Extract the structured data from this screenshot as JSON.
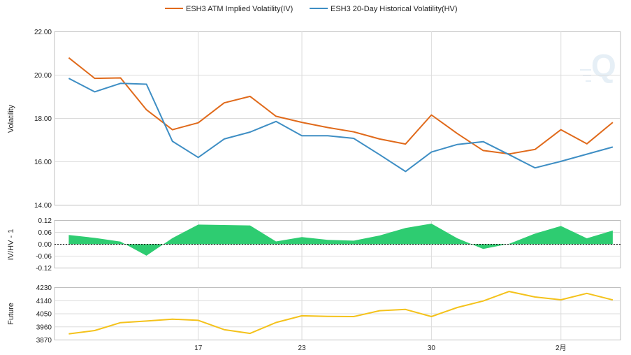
{
  "chart_data": [
    {
      "type": "line",
      "legend": {
        "placement": "top-center"
      },
      "ylabel": "Volatility",
      "ylim": [
        14,
        22
      ],
      "yticks": [
        "22.00",
        "20.00",
        "18.00",
        "16.00",
        "14.00"
      ],
      "x": [
        1,
        2,
        3,
        4,
        5,
        6,
        7,
        8,
        9,
        10,
        11,
        12,
        13,
        14,
        15,
        16,
        17,
        18,
        19,
        20,
        21,
        22
      ],
      "xlim": [
        0.45,
        22.3
      ],
      "xticks": [
        {
          "label": "17",
          "x": 6
        },
        {
          "label": "23",
          "x": 10
        },
        {
          "label": "30",
          "x": 15
        },
        {
          "label": "2月",
          "x": 20
        }
      ],
      "grid": true,
      "series": [
        {
          "name": "ESH3 ATM Implied Volatility(IV)",
          "color": "#e06a1b",
          "values": [
            20.8,
            19.85,
            19.87,
            18.4,
            17.48,
            17.8,
            18.72,
            19.02,
            18.1,
            17.82,
            17.58,
            17.38,
            17.05,
            16.82,
            18.16,
            17.3,
            16.52,
            16.36,
            16.57,
            17.48,
            16.83,
            17.82
          ]
        },
        {
          "name": "ESH3 20-Day Historical Volatility(HV)",
          "color": "#3e8ec4",
          "values": [
            19.85,
            19.23,
            19.62,
            19.58,
            16.95,
            16.2,
            17.05,
            17.37,
            17.86,
            17.2,
            17.2,
            17.08,
            16.33,
            15.55,
            16.45,
            16.8,
            16.93,
            16.33,
            15.72,
            16.02,
            16.35,
            16.68
          ]
        }
      ]
    },
    {
      "type": "area",
      "ylabel": "IV/HV - 1",
      "ylim": [
        -0.12,
        0.12
      ],
      "yticks": [
        "0.12",
        "0.06",
        "0.00",
        "-0.06",
        "-0.12"
      ],
      "baseline": 0,
      "grid": true,
      "series": [
        {
          "color": "#2ecc71",
          "values": [
            0.047,
            0.032,
            0.013,
            -0.058,
            0.031,
            0.099,
            0.097,
            0.095,
            0.014,
            0.036,
            0.022,
            0.018,
            0.044,
            0.082,
            0.104,
            0.03,
            -0.024,
            0.002,
            0.054,
            0.092,
            0.03,
            0.069
          ]
        }
      ]
    },
    {
      "type": "line",
      "ylabel": "Future",
      "ylim": [
        3870,
        4230
      ],
      "yticks": [
        "4230",
        "4140",
        "4050",
        "3960",
        "3870"
      ],
      "grid": true,
      "series": [
        {
          "color": "#f4c21b",
          "values": [
            3912,
            3935,
            3989,
            4000,
            4013,
            4005,
            3941,
            3915,
            3990,
            4036,
            4032,
            4031,
            4071,
            4080,
            4031,
            4093,
            4138,
            4203,
            4165,
            4146,
            4190,
            4145
          ]
        }
      ]
    }
  ]
}
